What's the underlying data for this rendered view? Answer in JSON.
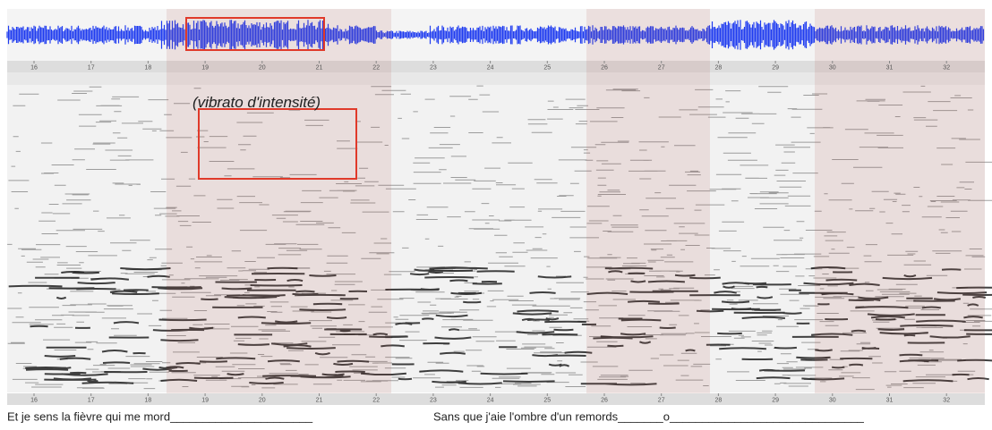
{
  "timeline_top": {
    "ticks": [
      16,
      17,
      18,
      19,
      20,
      21,
      22,
      23,
      24,
      25,
      26,
      27,
      28,
      29,
      30,
      31,
      32
    ]
  },
  "spectrogram": {
    "annotation": "(vibrato d'intensité)"
  },
  "timeline_bottom": {
    "ticks": [
      16,
      17,
      18,
      19,
      20,
      21,
      22,
      23,
      24,
      25,
      26,
      27,
      28,
      29,
      30,
      31,
      32
    ]
  },
  "lyrics": [
    "Et je sens la fièvre qui me mord______________________",
    "Sans que j'aie l'ombre d'un remords_______o______________________________"
  ]
}
